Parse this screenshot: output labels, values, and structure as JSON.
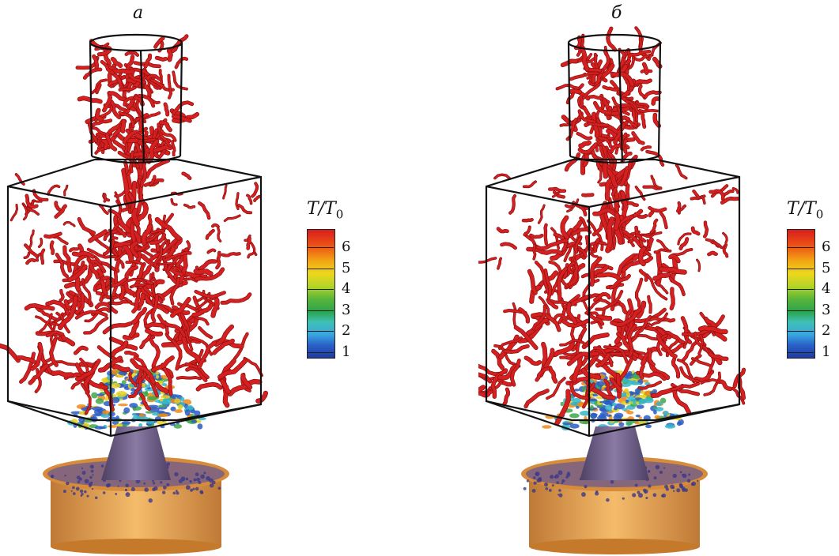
{
  "panels": [
    {
      "label": "a",
      "name": "panel-a"
    },
    {
      "label": "б",
      "name": "panel-b"
    }
  ],
  "legend": {
    "title_main": "T",
    "title_sep": "/",
    "title_sub_base": "T",
    "title_sub": "0",
    "ticks": [
      "6",
      "5",
      "4",
      "3",
      "2",
      "1"
    ]
  },
  "colors": {
    "hot": "#d42020",
    "flame_yellow": "#e8d21e",
    "flame_green": "#3ea84a",
    "flame_blue": "#2a5cc4",
    "nozzle": "#6a5a80",
    "base": "#e09a3c",
    "frame": "#111111"
  }
}
